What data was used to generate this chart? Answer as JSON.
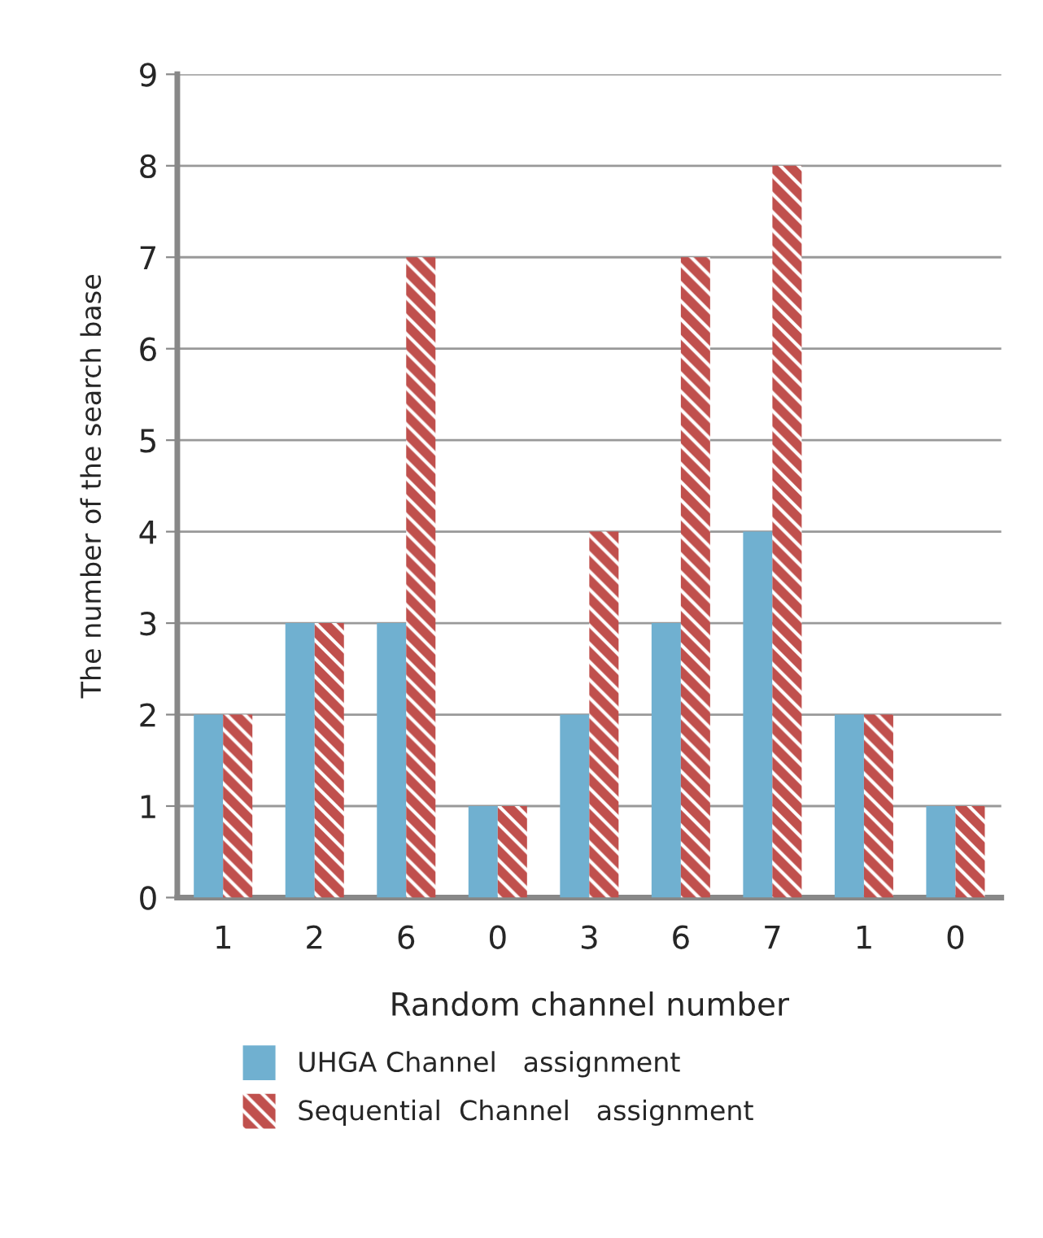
{
  "chart_data": {
    "type": "bar",
    "xlabel": "Random channel number",
    "ylabel": "The number of the search base",
    "categories": [
      "1",
      "2",
      "6",
      "0",
      "3",
      "6",
      "7",
      "1",
      "0"
    ],
    "series": [
      {
        "name": "UHGA Channel   assignment",
        "color": "#70b0d0",
        "values": [
          2,
          3,
          3,
          1,
          2,
          3,
          4,
          2,
          1
        ]
      },
      {
        "name": "Sequential  Channel   assignment",
        "color": "#c0504d",
        "values": [
          2,
          3,
          7,
          1,
          4,
          7,
          8,
          2,
          1
        ]
      }
    ],
    "ylim": [
      0,
      9
    ],
    "yticks": [
      0,
      1,
      2,
      3,
      4,
      5,
      6,
      7,
      8,
      9
    ],
    "grid": "y",
    "legend": "bottom"
  }
}
